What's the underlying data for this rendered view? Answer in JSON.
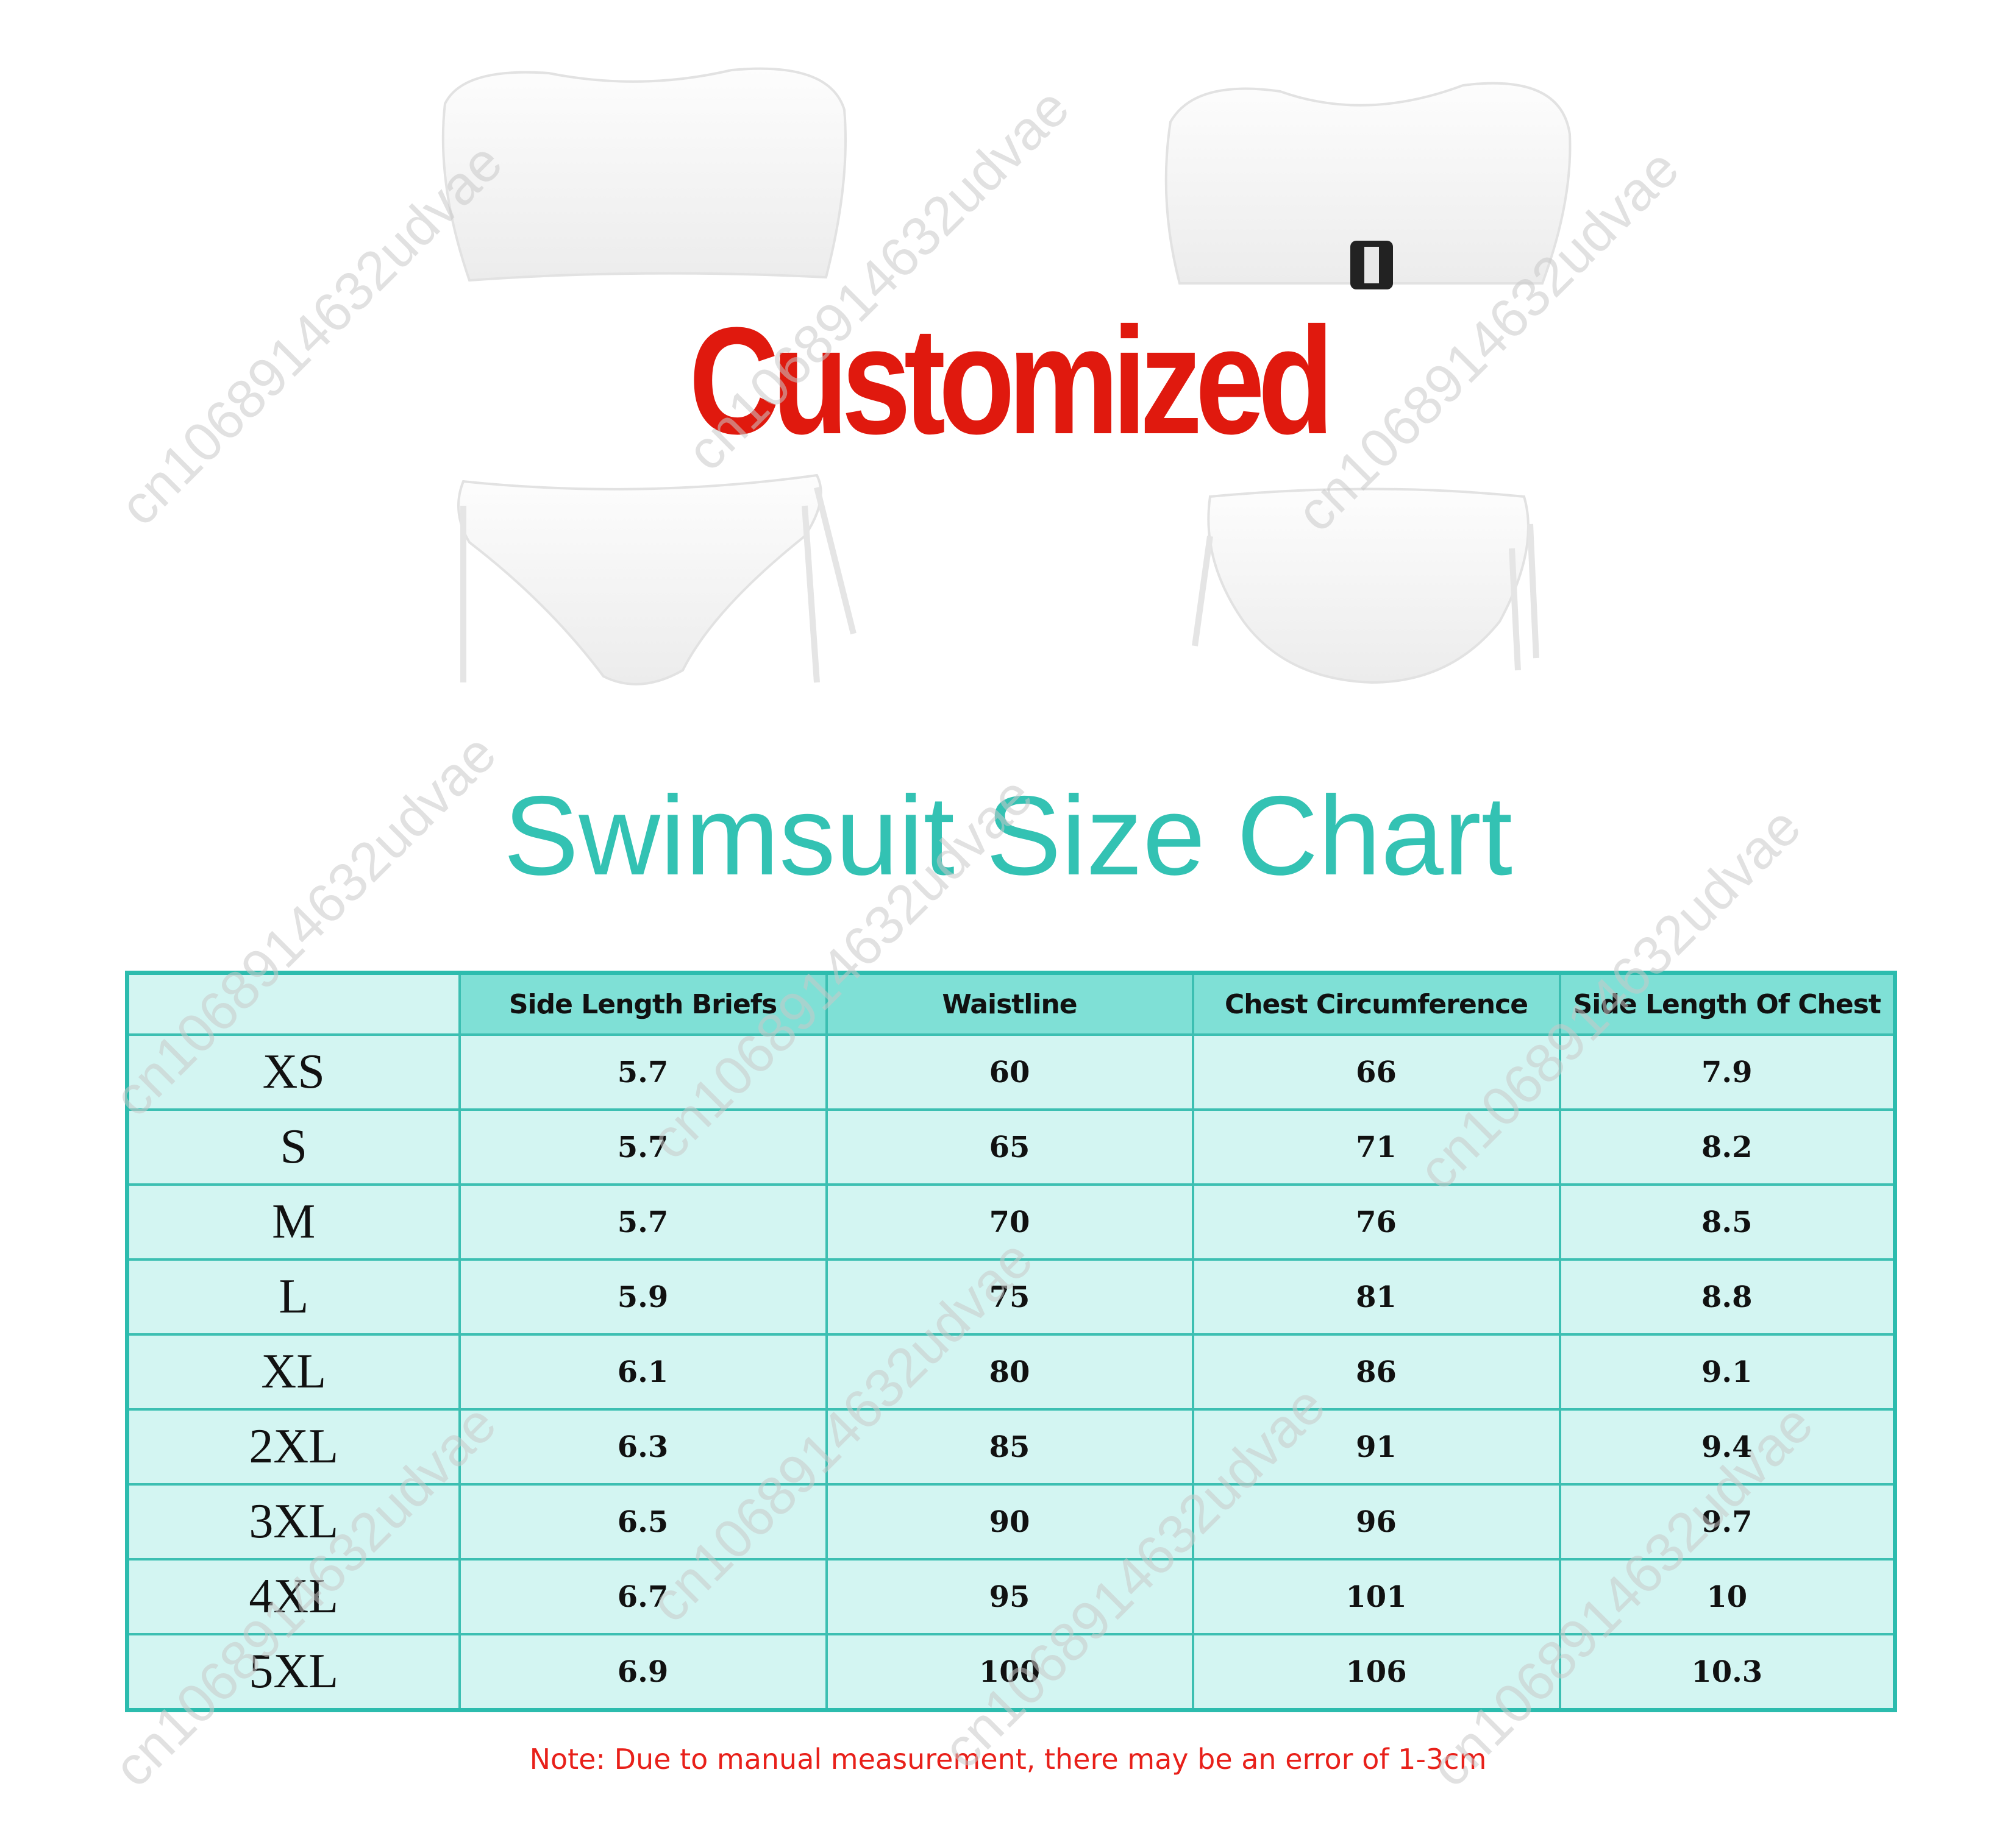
{
  "banner": {
    "customized": "Customized"
  },
  "title": "Swimsuit Size Chart",
  "table": {
    "headers": [
      "",
      "Side Length Briefs",
      "Waistline",
      "Chest Circumference",
      "Side Length Of Chest"
    ],
    "rows": [
      [
        "XS",
        "5.7",
        "60",
        "66",
        "7.9"
      ],
      [
        "S",
        "5.7",
        "65",
        "71",
        "8.2"
      ],
      [
        "M",
        "5.7",
        "70",
        "76",
        "8.5"
      ],
      [
        "L",
        "5.9",
        "75",
        "81",
        "8.8"
      ],
      [
        "XL",
        "6.1",
        "80",
        "86",
        "9.1"
      ],
      [
        "2XL",
        "6.3",
        "85",
        "91",
        "9.4"
      ],
      [
        "3XL",
        "6.5",
        "90",
        "96",
        "9.7"
      ],
      [
        "4XL",
        "6.7",
        "95",
        "101",
        "10"
      ],
      [
        "5XL",
        "6.9",
        "100",
        "106",
        "10.3"
      ]
    ]
  },
  "note": "Note: Due to manual measurement, there may be an error of 1-3cm",
  "watermark": "cn1068914632udvae",
  "colors": {
    "accent": "#33c2b3",
    "header_bg": "#7fe0d6",
    "cell_bg": "#d3f5f2",
    "customized": "#e0190e",
    "note": "#e8201a"
  }
}
